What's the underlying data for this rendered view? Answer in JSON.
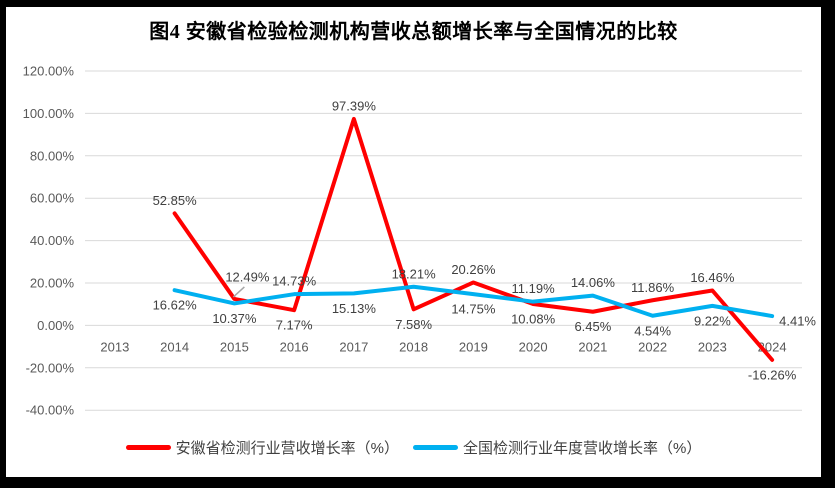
{
  "window": {
    "frame_color": "#000000",
    "canvas_color": "#ffffff"
  },
  "chart": {
    "title": "图4 安徽省检验检测机构营收总额增长率与全国情况的比较"
  },
  "legend": {
    "items": [
      {
        "label": "安徽省检测行业营收增长率（%）",
        "color": "#FF0000"
      },
      {
        "label": "全国检测行业年度营收增长率（%）",
        "color": "#00B0F0"
      }
    ]
  },
  "chart_data": {
    "type": "line",
    "title": "图4 安徽省检验检测机构营收总额增长率与全国情况的比较",
    "categories": [
      "2013",
      "2014",
      "2015",
      "2016",
      "2017",
      "2018",
      "2019",
      "2020",
      "2021",
      "2022",
      "2023",
      "2024"
    ],
    "ylim": [
      -40,
      120
    ],
    "y_ticks": [
      120,
      100,
      80,
      60,
      40,
      20,
      0,
      -20,
      -40
    ],
    "y_tick_suffix": "%",
    "grid": true,
    "legend_position": "bottom",
    "series": [
      {
        "name": "安徽省检测行业营收增长率（%）",
        "color": "#FF0000",
        "values": [
          null,
          52.85,
          12.49,
          7.17,
          97.39,
          7.58,
          20.26,
          10.08,
          6.45,
          11.86,
          16.46,
          -16.26
        ],
        "label_positions": [
          null,
          "above",
          "above-leader",
          "below",
          "above",
          "below",
          "above",
          "below",
          "below",
          "above",
          "above",
          "below"
        ]
      },
      {
        "name": "全国检测行业年度营收增长率（%）",
        "color": "#00B0F0",
        "values": [
          null,
          16.62,
          10.37,
          14.73,
          15.13,
          18.21,
          14.75,
          11.19,
          14.06,
          4.54,
          9.22,
          4.41
        ],
        "label_positions": [
          null,
          "below",
          "below",
          "above",
          "below",
          "above",
          "below",
          "above",
          "above",
          "below",
          "below",
          "right"
        ]
      }
    ],
    "colors": {
      "grid": "#D9D9D9",
      "axis_text": "#595959",
      "data_label_text": "#404040",
      "leader_line": "#A6A6A6"
    }
  }
}
